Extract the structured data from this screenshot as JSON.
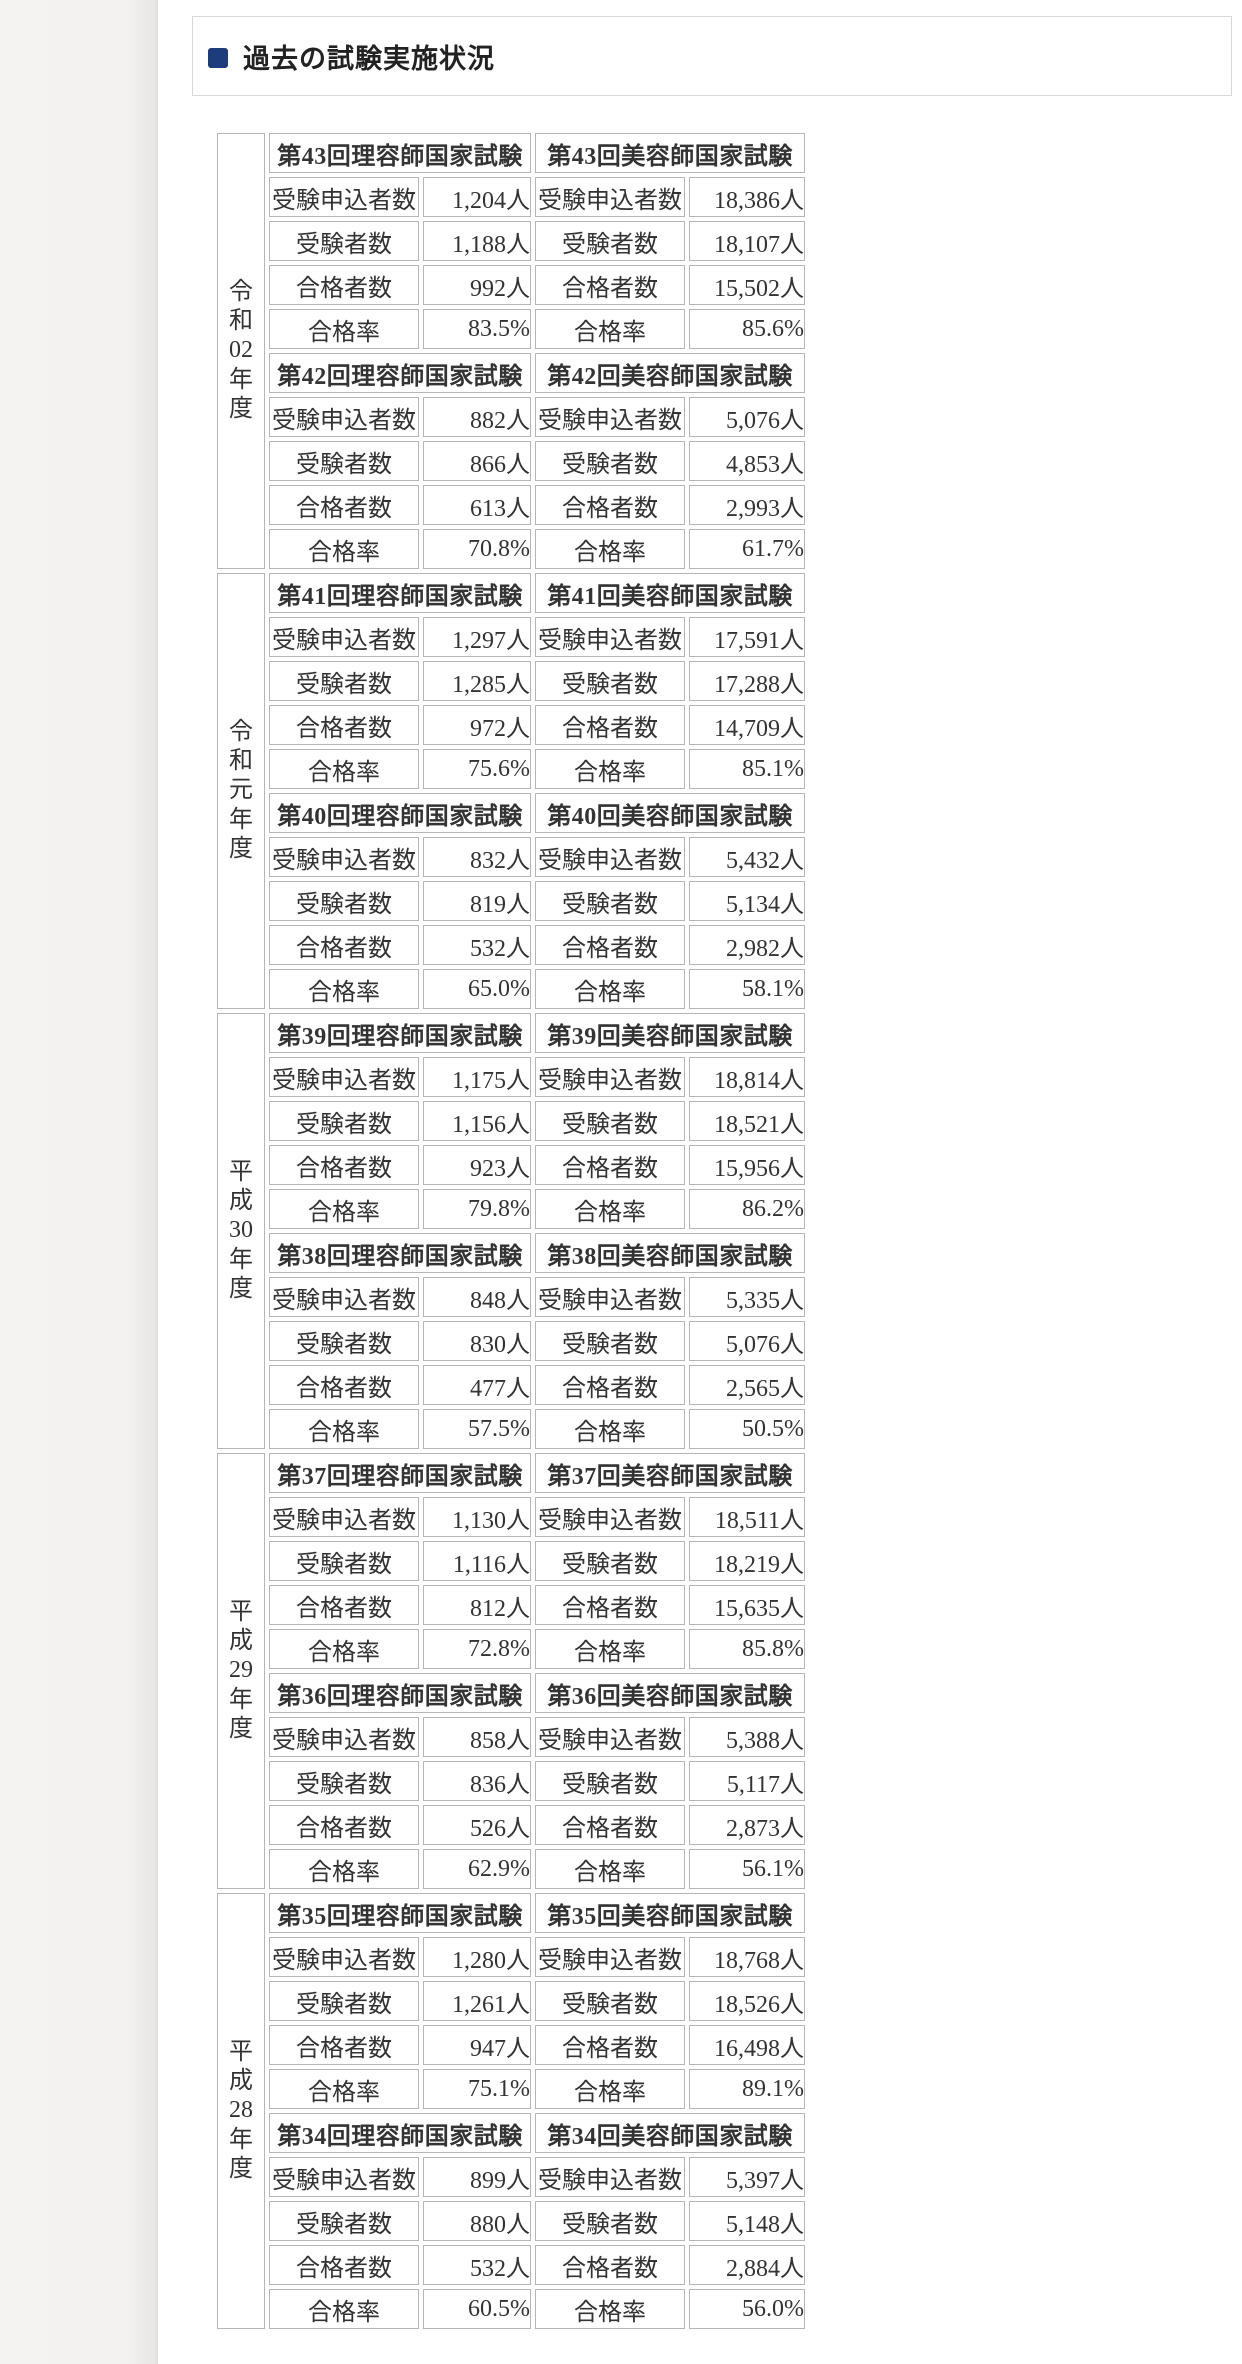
{
  "header": {
    "title": "過去の試験実施状況",
    "bullet_icon": "blue-square-icon",
    "accent_color": "#1d3c7c"
  },
  "colors": {
    "exam_header_bg": "#f5f2da",
    "cell_border": "#b5b5b5",
    "section_border": "#d9d9d9",
    "text": "#333333"
  },
  "table": {
    "row_labels": [
      "受験申込者数",
      "受験者数",
      "合格者数",
      "合格率"
    ],
    "year_groups": [
      {
        "year_label": "令和02年度",
        "year_chars": [
          "令",
          "和",
          "02",
          "年",
          "度"
        ],
        "exams": [
          {
            "riyo_title": "第43回理容師国家試験",
            "riyo_values": [
              "1,204人",
              "1,188人",
              "992人",
              "83.5%"
            ],
            "biyo_title": "第43回美容師国家試験",
            "biyo_values": [
              "18,386人",
              "18,107人",
              "15,502人",
              "85.6%"
            ]
          },
          {
            "riyo_title": "第42回理容師国家試験",
            "riyo_values": [
              "882人",
              "866人",
              "613人",
              "70.8%"
            ],
            "biyo_title": "第42回美容師国家試験",
            "biyo_values": [
              "5,076人",
              "4,853人",
              "2,993人",
              "61.7%"
            ]
          }
        ]
      },
      {
        "year_label": "令和元年度",
        "year_chars": [
          "令",
          "和",
          "元",
          "年",
          "度"
        ],
        "exams": [
          {
            "riyo_title": "第41回理容師国家試験",
            "riyo_values": [
              "1,297人",
              "1,285人",
              "972人",
              "75.6%"
            ],
            "biyo_title": "第41回美容師国家試験",
            "biyo_values": [
              "17,591人",
              "17,288人",
              "14,709人",
              "85.1%"
            ]
          },
          {
            "riyo_title": "第40回理容師国家試験",
            "riyo_values": [
              "832人",
              "819人",
              "532人",
              "65.0%"
            ],
            "biyo_title": "第40回美容師国家試験",
            "biyo_values": [
              "5,432人",
              "5,134人",
              "2,982人",
              "58.1%"
            ]
          }
        ]
      },
      {
        "year_label": "平成30年度",
        "year_chars": [
          "平",
          "成",
          "30",
          "年",
          "度"
        ],
        "exams": [
          {
            "riyo_title": "第39回理容師国家試験",
            "riyo_values": [
              "1,175人",
              "1,156人",
              "923人",
              "79.8%"
            ],
            "biyo_title": "第39回美容師国家試験",
            "biyo_values": [
              "18,814人",
              "18,521人",
              "15,956人",
              "86.2%"
            ]
          },
          {
            "riyo_title": "第38回理容師国家試験",
            "riyo_values": [
              "848人",
              "830人",
              "477人",
              "57.5%"
            ],
            "biyo_title": "第38回美容師国家試験",
            "biyo_values": [
              "5,335人",
              "5,076人",
              "2,565人",
              "50.5%"
            ]
          }
        ]
      },
      {
        "year_label": "平成29年度",
        "year_chars": [
          "平",
          "成",
          "29",
          "年",
          "度"
        ],
        "exams": [
          {
            "riyo_title": "第37回理容師国家試験",
            "riyo_values": [
              "1,130人",
              "1,116人",
              "812人",
              "72.8%"
            ],
            "biyo_title": "第37回美容師国家試験",
            "biyo_values": [
              "18,511人",
              "18,219人",
              "15,635人",
              "85.8%"
            ]
          },
          {
            "riyo_title": "第36回理容師国家試験",
            "riyo_values": [
              "858人",
              "836人",
              "526人",
              "62.9%"
            ],
            "biyo_title": "第36回美容師国家試験",
            "biyo_values": [
              "5,388人",
              "5,117人",
              "2,873人",
              "56.1%"
            ]
          }
        ]
      },
      {
        "year_label": "平成28年度",
        "year_chars": [
          "平",
          "成",
          "28",
          "年",
          "度"
        ],
        "exams": [
          {
            "riyo_title": "第35回理容師国家試験",
            "riyo_values": [
              "1,280人",
              "1,261人",
              "947人",
              "75.1%"
            ],
            "biyo_title": "第35回美容師国家試験",
            "biyo_values": [
              "18,768人",
              "18,526人",
              "16,498人",
              "89.1%"
            ]
          },
          {
            "riyo_title": "第34回理容師国家試験",
            "riyo_values": [
              "899人",
              "880人",
              "532人",
              "60.5%"
            ],
            "biyo_title": "第34回美容師国家試験",
            "biyo_values": [
              "5,397人",
              "5,148人",
              "2,884人",
              "56.0%"
            ]
          }
        ]
      }
    ]
  }
}
